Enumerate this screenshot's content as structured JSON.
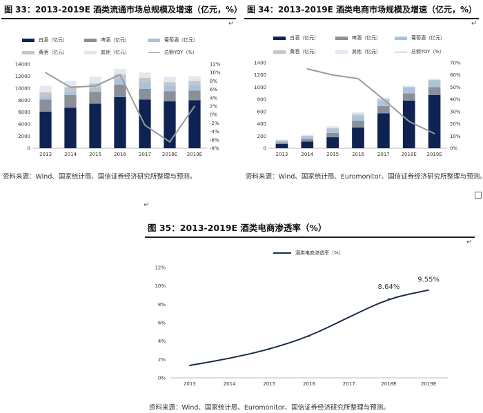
{
  "fig33": {
    "title": "图 33：2013-2019E 酒类流通市场总规模及增速（亿元，%）",
    "source": "资料来源：Wind、国家统计局、国信证券经济研究所整理与预测。",
    "legend": [
      "白酒（亿元）",
      "啤酒（亿元）",
      "葡萄酒（亿元）",
      "黄酒（亿元）",
      "其他（亿元）",
      "总额YOY（%）"
    ]
  },
  "fig34": {
    "title": "图 34：2013-2019E 酒类电商市场规模及增速（亿元，%）",
    "source": "资料来源：Wind、国家统计局、Euromonitor、国信证券经济研究所整理与预测。",
    "legend": [
      "白酒（亿元）",
      "啤酒（亿元）",
      "葡萄酒（亿元）",
      "黄酒（亿元）",
      "其他（亿元）",
      "总额YOY（%）"
    ]
  },
  "fig35": {
    "title": "图 35：2013-2019E 酒类电商渗透率（%）",
    "source": "资料来源：Wind、国家统计局、Euromonitor、国信证券经济研究所整理与预测。",
    "legend": [
      "酒类电商渗透率（%）"
    ]
  },
  "colors": {
    "baijiu": "#0f2352",
    "pijiu": "#8a8f98",
    "putaojiu": "#a9c3dc",
    "huangjiu": "#c6c6c6",
    "qita": "#e2e7f1",
    "yoy": "#9a9a9a",
    "line35": "#1a2b4a"
  },
  "chart_data": [
    {
      "type": "bar",
      "stacked": true,
      "categories": [
        "2013",
        "2014",
        "2015",
        "2016",
        "2017",
        "2018E",
        "2019E"
      ],
      "series": [
        {
          "name": "白酒（亿元）",
          "values": [
            6100,
            6750,
            7400,
            8500,
            8100,
            7800,
            8000
          ]
        },
        {
          "name": "啤酒（亿元）",
          "values": [
            2000,
            2100,
            2000,
            2100,
            1800,
            1700,
            1600
          ]
        },
        {
          "name": "葡萄酒（亿元）",
          "values": [
            500,
            600,
            700,
            1000,
            1100,
            900,
            1000
          ]
        },
        {
          "name": "黄酒（亿元）",
          "values": [
            700,
            700,
            700,
            700,
            700,
            600,
            600
          ]
        },
        {
          "name": "其他（亿元）",
          "values": [
            1100,
            1050,
            1100,
            900,
            900,
            900,
            800
          ]
        }
      ],
      "line": {
        "name": "总额YOY（%）",
        "axis": "right",
        "values": [
          10,
          6.5,
          6.8,
          9.5,
          -2.5,
          -6.5,
          2
        ]
      },
      "ylim": [
        0,
        14000
      ],
      "yticks": [
        "0",
        "2000",
        "4000",
        "6000",
        "8000",
        "10000",
        "12000",
        "14000"
      ],
      "y2lim": [
        -8,
        12
      ],
      "y2ticks": [
        "-8%",
        "-6%",
        "-4%",
        "-2%",
        "0%",
        "2%",
        "4%",
        "6%",
        "8%",
        "10%",
        "12%"
      ]
    },
    {
      "type": "bar",
      "stacked": true,
      "categories": [
        "2013",
        "2014",
        "2015",
        "2016",
        "2017",
        "2018E",
        "2019E"
      ],
      "series": [
        {
          "name": "白酒（亿元）",
          "values": [
            70,
            110,
            180,
            340,
            570,
            780,
            870
          ]
        },
        {
          "name": "啤酒（亿元）",
          "values": [
            25,
            40,
            70,
            110,
            120,
            120,
            130
          ]
        },
        {
          "name": "葡萄酒（亿元）",
          "values": [
            25,
            40,
            60,
            80,
            90,
            90,
            100
          ]
        },
        {
          "name": "黄酒（亿元）",
          "values": [
            10,
            15,
            20,
            25,
            25,
            15,
            20
          ]
        },
        {
          "name": "其他（亿元）",
          "values": [
            10,
            15,
            30,
            35,
            25,
            20,
            20
          ]
        }
      ],
      "line": {
        "name": "总额YOY（%）",
        "axis": "right",
        "start_index": 1,
        "values": [
          null,
          65,
          60,
          57,
          40,
          22,
          12
        ]
      },
      "ylim": [
        0,
        1400
      ],
      "yticks": [
        "0",
        "200",
        "400",
        "600",
        "800",
        "1000",
        "1200",
        "1400"
      ],
      "y2lim": [
        0,
        70
      ],
      "y2ticks": [
        "0%",
        "10%",
        "20%",
        "30%",
        "40%",
        "50%",
        "60%",
        "70%"
      ]
    },
    {
      "type": "line",
      "categories": [
        "2013",
        "2014",
        "2015",
        "2016",
        "2017",
        "2018E",
        "2019E"
      ],
      "series": [
        {
          "name": "酒类电商渗透率（%）",
          "values": [
            1.35,
            2.1,
            3.1,
            4.5,
            6.6,
            8.64,
            9.55
          ]
        }
      ],
      "data_labels": [
        "8.64%",
        "9.55%"
      ],
      "ylim": [
        0,
        12
      ],
      "yticks": [
        "0%",
        "2%",
        "4%",
        "6%",
        "8%",
        "10%",
        "12%"
      ]
    }
  ]
}
